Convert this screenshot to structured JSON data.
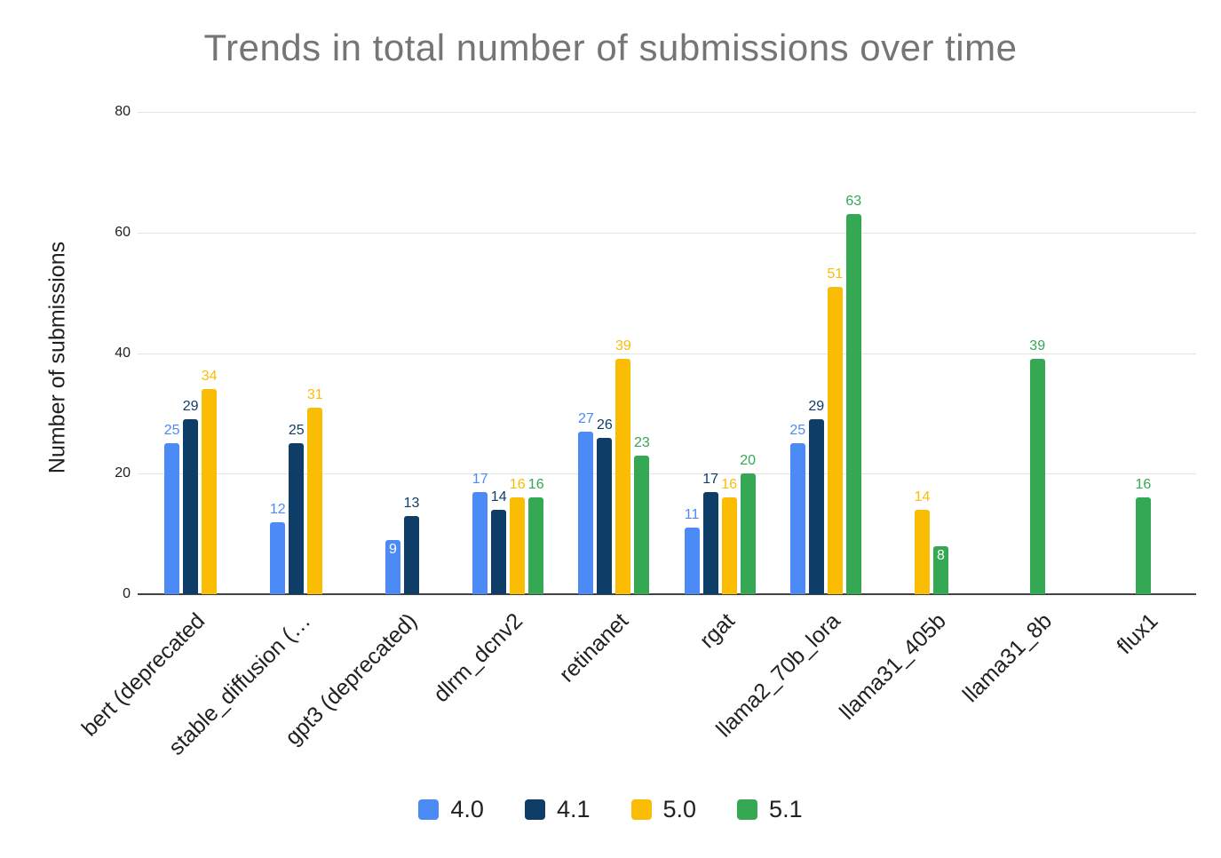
{
  "chart_data": {
    "type": "bar",
    "title": "Trends in total number of submissions over time",
    "ylabel": "Number of submissions",
    "xlabel": "",
    "ylim": [
      0,
      80
    ],
    "yticks": [
      0,
      20,
      40,
      60,
      80
    ],
    "grid": true,
    "legend_position": "bottom",
    "categories": [
      "bert (deprecated",
      "stable_diffusion (…",
      "gpt3 (deprecated)",
      "dlrm_dcnv2",
      "retinanet",
      "rgat",
      "llama2_70b_lora",
      "llama31_405b",
      "llama31_8b",
      "flux1"
    ],
    "series": [
      {
        "name": "4.0",
        "color": "#4c8bf5",
        "values": [
          25,
          12,
          9,
          17,
          27,
          11,
          25,
          null,
          null,
          null
        ]
      },
      {
        "name": "4.1",
        "color": "#0e3d67",
        "values": [
          29,
          25,
          13,
          14,
          26,
          17,
          29,
          null,
          null,
          null
        ]
      },
      {
        "name": "5.0",
        "color": "#fbbc04",
        "values": [
          34,
          31,
          null,
          16,
          39,
          16,
          51,
          14,
          null,
          null
        ]
      },
      {
        "name": "5.1",
        "color": "#34a853",
        "values": [
          null,
          null,
          null,
          16,
          23,
          20,
          63,
          8,
          39,
          16
        ]
      }
    ],
    "labels_inside_bar": [
      {
        "category_index": 2,
        "series_index": 0,
        "value": 9
      },
      {
        "category_index": 7,
        "series_index": 3,
        "value": 8
      }
    ]
  },
  "colors": {
    "title_text": "#757575",
    "axis_text": "#202124",
    "gridline": "#e3e3e3",
    "axis_line": "#424242",
    "background": "#ffffff",
    "inside_label_text": "#ffffff"
  }
}
